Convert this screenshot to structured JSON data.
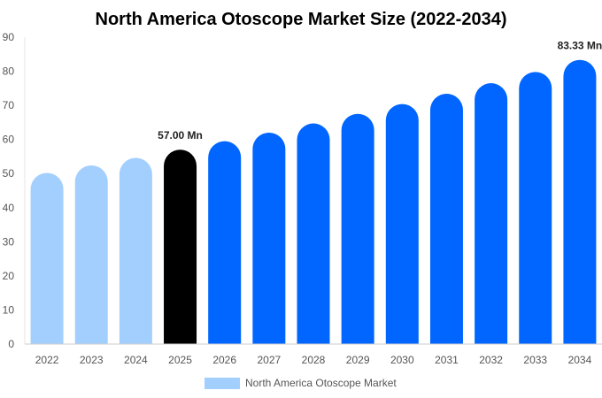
{
  "chart_data": {
    "type": "bar",
    "title": "North America Otoscope Market Size (2022-2034)",
    "xlabel": "",
    "ylabel": "",
    "ylim": [
      0,
      90
    ],
    "yticks": [
      0,
      10,
      20,
      30,
      40,
      50,
      60,
      70,
      80,
      90
    ],
    "grid": false,
    "legend_position": "bottom",
    "categories": [
      "2022",
      "2023",
      "2024",
      "2025",
      "2026",
      "2027",
      "2028",
      "2029",
      "2030",
      "2031",
      "2032",
      "2033",
      "2034"
    ],
    "series": [
      {
        "name": "North America Otoscope Market",
        "values": [
          50.2,
          52.4,
          54.6,
          57.0,
          59.5,
          62.0,
          64.7,
          67.5,
          70.4,
          73.4,
          76.5,
          79.8,
          83.33
        ]
      }
    ],
    "bar_colors": [
      "#a3cfff",
      "#a3cfff",
      "#a3cfff",
      "#000000",
      "#0066ff",
      "#0066ff",
      "#0066ff",
      "#0066ff",
      "#0066ff",
      "#0066ff",
      "#0066ff",
      "#0066ff",
      "#0066ff"
    ],
    "legend_color": "#a3cfff",
    "data_labels": [
      {
        "category": "2025",
        "text": "57.00 Mn"
      },
      {
        "category": "2034",
        "text": "83.33 Mn"
      }
    ]
  }
}
